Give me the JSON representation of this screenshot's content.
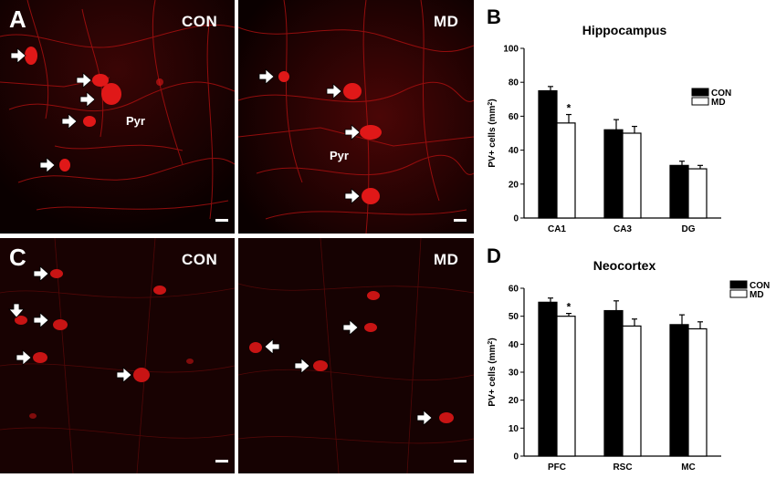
{
  "figure": {
    "panel_a": {
      "letter": "A",
      "left_label": "CON",
      "right_label": "MD",
      "region_label": "Pyr"
    },
    "panel_b_letter": "B",
    "panel_c": {
      "letter": "C",
      "left_label": "CON",
      "right_label": "MD"
    },
    "panel_d_letter": "D"
  },
  "colors": {
    "micrograph_bg": "#0a0000",
    "cell_red": "#e01818",
    "fiber_red": "#b01010",
    "con_bar": "#000000",
    "md_bar": "#ffffff"
  },
  "icons": [
    "arrow-right-icon",
    "arrow-left-icon",
    "arrow-down-icon",
    "scale-bar-icon"
  ],
  "chart_data": [
    {
      "type": "bar",
      "title": "Hippocampus",
      "ylabel_main": "PV+ cells (mm",
      "ylabel_sup": "2",
      "ylabel_end": ")",
      "categories": [
        "CA1",
        "CA3",
        "DG"
      ],
      "series": [
        {
          "name": "CON",
          "values": [
            75,
            52,
            31
          ],
          "errors": [
            2.5,
            6,
            2.5
          ]
        },
        {
          "name": "MD",
          "values": [
            56,
            50,
            29
          ],
          "errors": [
            5,
            4,
            2
          ]
        }
      ],
      "significance": [
        "*",
        "",
        ""
      ],
      "ylim": [
        0,
        100
      ],
      "yticks": [
        "0",
        "20",
        "40",
        "60",
        "80",
        "100"
      ],
      "legend": "top-right",
      "grid": false
    },
    {
      "type": "bar",
      "title": "Neocortex",
      "ylabel_main": "PV+ cells (mm",
      "ylabel_sup": "2",
      "ylabel_end": ")",
      "categories": [
        "PFC",
        "RSC",
        "MC"
      ],
      "series": [
        {
          "name": "CON",
          "values": [
            55,
            52,
            47
          ],
          "errors": [
            1.5,
            3.5,
            3.5
          ]
        },
        {
          "name": "MD",
          "values": [
            50,
            46.5,
            45.5
          ],
          "errors": [
            1,
            2.5,
            2.5
          ]
        }
      ],
      "significance": [
        "*",
        "",
        ""
      ],
      "ylim": [
        0,
        60
      ],
      "yticks": [
        "0",
        "10",
        "20",
        "30",
        "40",
        "50",
        "60"
      ],
      "legend": "top-right",
      "grid": false
    }
  ]
}
